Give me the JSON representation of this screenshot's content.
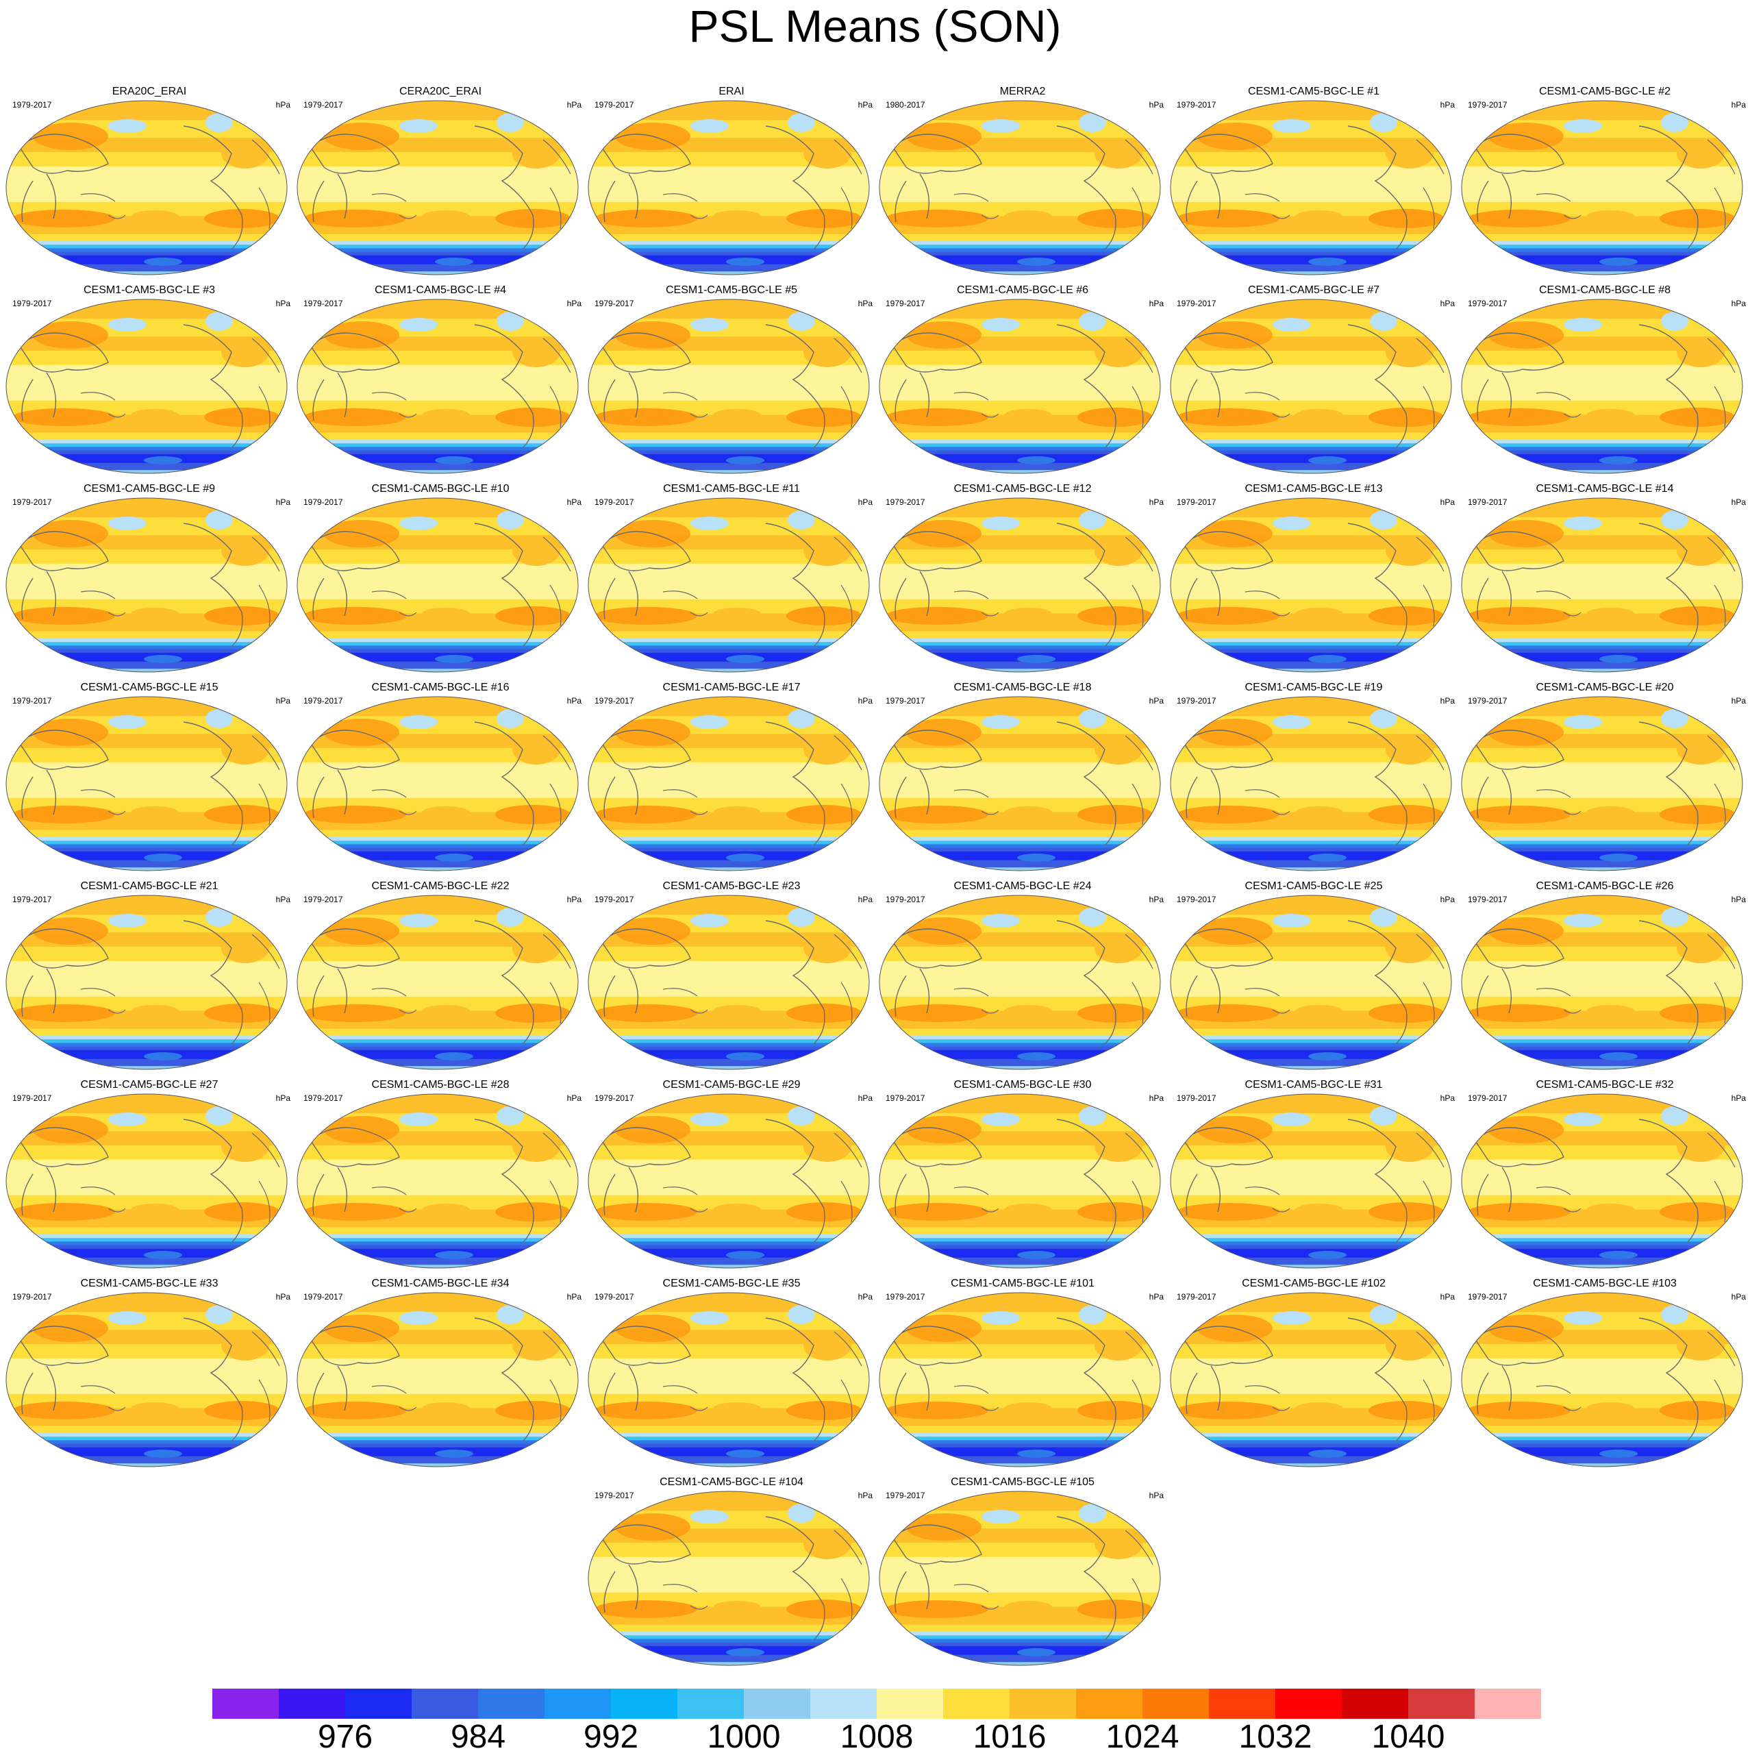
{
  "title": "PSL Means (SON)",
  "units": "hPa",
  "panels": [
    {
      "name": "ERA20C_ERAI",
      "period": "1979-2017"
    },
    {
      "name": "CERA20C_ERAI",
      "period": "1979-2017"
    },
    {
      "name": "ERAI",
      "period": "1979-2017"
    },
    {
      "name": "MERRA2",
      "period": "1980-2017"
    },
    {
      "name": "CESM1-CAM5-BGC-LE #1",
      "period": "1979-2017"
    },
    {
      "name": "CESM1-CAM5-BGC-LE #2",
      "period": "1979-2017"
    },
    {
      "name": "CESM1-CAM5-BGC-LE #3",
      "period": "1979-2017"
    },
    {
      "name": "CESM1-CAM5-BGC-LE #4",
      "period": "1979-2017"
    },
    {
      "name": "CESM1-CAM5-BGC-LE #5",
      "period": "1979-2017"
    },
    {
      "name": "CESM1-CAM5-BGC-LE #6",
      "period": "1979-2017"
    },
    {
      "name": "CESM1-CAM5-BGC-LE #7",
      "period": "1979-2017"
    },
    {
      "name": "CESM1-CAM5-BGC-LE #8",
      "period": "1979-2017"
    },
    {
      "name": "CESM1-CAM5-BGC-LE #9",
      "period": "1979-2017"
    },
    {
      "name": "CESM1-CAM5-BGC-LE #10",
      "period": "1979-2017"
    },
    {
      "name": "CESM1-CAM5-BGC-LE #11",
      "period": "1979-2017"
    },
    {
      "name": "CESM1-CAM5-BGC-LE #12",
      "period": "1979-2017"
    },
    {
      "name": "CESM1-CAM5-BGC-LE #13",
      "period": "1979-2017"
    },
    {
      "name": "CESM1-CAM5-BGC-LE #14",
      "period": "1979-2017"
    },
    {
      "name": "CESM1-CAM5-BGC-LE #15",
      "period": "1979-2017"
    },
    {
      "name": "CESM1-CAM5-BGC-LE #16",
      "period": "1979-2017"
    },
    {
      "name": "CESM1-CAM5-BGC-LE #17",
      "period": "1979-2017"
    },
    {
      "name": "CESM1-CAM5-BGC-LE #18",
      "period": "1979-2017"
    },
    {
      "name": "CESM1-CAM5-BGC-LE #19",
      "period": "1979-2017"
    },
    {
      "name": "CESM1-CAM5-BGC-LE #20",
      "period": "1979-2017"
    },
    {
      "name": "CESM1-CAM5-BGC-LE #21",
      "period": "1979-2017"
    },
    {
      "name": "CESM1-CAM5-BGC-LE #22",
      "period": "1979-2017"
    },
    {
      "name": "CESM1-CAM5-BGC-LE #23",
      "period": "1979-2017"
    },
    {
      "name": "CESM1-CAM5-BGC-LE #24",
      "period": "1979-2017"
    },
    {
      "name": "CESM1-CAM5-BGC-LE #25",
      "period": "1979-2017"
    },
    {
      "name": "CESM1-CAM5-BGC-LE #26",
      "period": "1979-2017"
    },
    {
      "name": "CESM1-CAM5-BGC-LE #27",
      "period": "1979-2017"
    },
    {
      "name": "CESM1-CAM5-BGC-LE #28",
      "period": "1979-2017"
    },
    {
      "name": "CESM1-CAM5-BGC-LE #29",
      "period": "1979-2017"
    },
    {
      "name": "CESM1-CAM5-BGC-LE #30",
      "period": "1979-2017"
    },
    {
      "name": "CESM1-CAM5-BGC-LE #31",
      "period": "1979-2017"
    },
    {
      "name": "CESM1-CAM5-BGC-LE #32",
      "period": "1979-2017"
    },
    {
      "name": "CESM1-CAM5-BGC-LE #33",
      "period": "1979-2017"
    },
    {
      "name": "CESM1-CAM5-BGC-LE #34",
      "period": "1979-2017"
    },
    {
      "name": "CESM1-CAM5-BGC-LE #35",
      "period": "1979-2017"
    },
    {
      "name": "CESM1-CAM5-BGC-LE #101",
      "period": "1979-2017"
    },
    {
      "name": "CESM1-CAM5-BGC-LE #102",
      "period": "1979-2017"
    },
    {
      "name": "CESM1-CAM5-BGC-LE #103",
      "period": "1979-2017"
    },
    {
      "name": "CESM1-CAM5-BGC-LE #104",
      "period": "1979-2017"
    },
    {
      "name": "CESM1-CAM5-BGC-LE #105",
      "period": "1979-2017"
    }
  ],
  "colorbar": {
    "colors": [
      "#8a22ee",
      "#3a16f2",
      "#1a2af2",
      "#3a5ae2",
      "#2e78ea",
      "#1e96f6",
      "#08b2f6",
      "#3cc2f2",
      "#8ecdee",
      "#b8e0f6",
      "#fef59a",
      "#fede3a",
      "#fec02a",
      "#fe9c12",
      "#fe7a08",
      "#fe3e06",
      "#fe0202",
      "#d20202",
      "#d63a3a",
      "#feb2b2"
    ],
    "labels": [
      "976",
      "984",
      "992",
      "1000",
      "1008",
      "1016",
      "1024",
      "1032",
      "1040"
    ]
  }
}
